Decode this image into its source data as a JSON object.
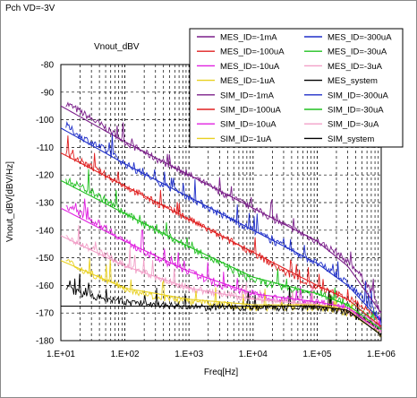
{
  "page_label": "Pch VD=-3V",
  "chart_data": {
    "type": "line",
    "title": "Vnout_dBV",
    "xlabel": "Freq[Hz]",
    "ylabel": "Vnout_dBV[dBV/Hz]",
    "x_scale": "log",
    "xlim": [
      10,
      1000000
    ],
    "ylim": [
      -180,
      -80
    ],
    "x_ticks": [
      10,
      100,
      1000,
      10000,
      100000,
      1000000
    ],
    "x_tick_labels": [
      "1.E+01",
      "1.E+02",
      "1.E+03",
      "1.E+04",
      "1.E+05",
      "1.E+06"
    ],
    "y_ticks": [
      -80,
      -90,
      -100,
      -110,
      -120,
      -130,
      -140,
      -150,
      -160,
      -170,
      -180
    ],
    "y_tick_labels": [
      "-80",
      "-90",
      "-100",
      "-110",
      "-120",
      "-130",
      "-140",
      "-150",
      "-160",
      "-170",
      "-180"
    ],
    "grid": "major-and-minor dashed",
    "legend_position": "top-right, inside plot",
    "series": [
      {
        "name": "MES_ID=-1mA",
        "color": "#7b1f8a",
        "kind": "measured",
        "x": [
          12,
          20,
          50,
          100,
          300,
          1000,
          3000,
          10000,
          30000,
          100000,
          200000,
          400000,
          700000,
          1000000
        ],
        "y": [
          -94,
          -97,
          -103,
          -108,
          -114,
          -120,
          -126,
          -132,
          -138,
          -144,
          -148,
          -154,
          -162,
          -170
        ]
      },
      {
        "name": "MES_ID=-300uA",
        "color": "#1f2fc8",
        "kind": "measured",
        "x": [
          12,
          20,
          50,
          100,
          300,
          1000,
          3000,
          10000,
          30000,
          100000,
          200000,
          400000,
          700000,
          1000000
        ],
        "y": [
          -102,
          -106,
          -111,
          -116,
          -122,
          -128,
          -134,
          -140,
          -146,
          -152,
          -156,
          -162,
          -168,
          -173
        ]
      },
      {
        "name": "MES_ID=-100uA",
        "color": "#e02020",
        "kind": "measured",
        "x": [
          12,
          20,
          50,
          100,
          300,
          1000,
          3000,
          10000,
          30000,
          100000,
          200000,
          400000,
          700000,
          1000000
        ],
        "y": [
          -112,
          -115,
          -120,
          -124,
          -130,
          -136,
          -142,
          -148,
          -155,
          -161,
          -163,
          -166,
          -170,
          -175
        ]
      },
      {
        "name": "MES_ID=-30uA",
        "color": "#20c020",
        "kind": "measured",
        "x": [
          12,
          20,
          50,
          100,
          300,
          1000,
          3000,
          10000,
          30000,
          100000,
          200000,
          400000,
          700000,
          1000000
        ],
        "y": [
          -122,
          -124,
          -129,
          -134,
          -140,
          -146,
          -152,
          -158,
          -161,
          -163,
          -165,
          -168,
          -172,
          -176
        ]
      },
      {
        "name": "MES_ID=-10uA",
        "color": "#e020e0",
        "kind": "measured",
        "x": [
          12,
          20,
          50,
          100,
          300,
          1000,
          3000,
          10000,
          30000,
          100000,
          200000,
          400000,
          700000,
          1000000
        ],
        "y": [
          -131,
          -134,
          -139,
          -144,
          -150,
          -155,
          -160,
          -163,
          -165,
          -166,
          -167,
          -170,
          -173,
          -177
        ]
      },
      {
        "name": "MES_ID=-3uA",
        "color": "#f2a0c8",
        "kind": "measured",
        "x": [
          12,
          20,
          50,
          100,
          300,
          1000,
          3000,
          10000,
          30000,
          100000,
          200000,
          400000,
          700000,
          1000000
        ],
        "y": [
          -142,
          -145,
          -149,
          -153,
          -157,
          -161,
          -163,
          -165,
          -166,
          -167,
          -168,
          -170,
          -173,
          -177
        ]
      },
      {
        "name": "MES_ID=-1uA",
        "color": "#e8d020",
        "kind": "measured",
        "x": [
          12,
          20,
          50,
          100,
          300,
          1000,
          3000,
          10000,
          30000,
          100000,
          200000,
          400000,
          700000,
          1000000
        ],
        "y": [
          -151,
          -154,
          -158,
          -161,
          -164,
          -166,
          -167,
          -168,
          -168,
          -168,
          -169,
          -171,
          -174,
          -178
        ]
      },
      {
        "name": "MES_system",
        "color": "#000000",
        "kind": "measured",
        "x": [
          12,
          20,
          50,
          100,
          300,
          1000,
          3000,
          10000,
          30000,
          100000,
          200000,
          400000,
          700000,
          1000000
        ],
        "y": [
          -161,
          -163,
          -165,
          -166,
          -167,
          -168,
          -168,
          -168,
          -168,
          -168,
          -169,
          -171,
          -174,
          -178
        ]
      },
      {
        "name": "SIM_ID=-1mA",
        "color": "#7b1f8a",
        "kind": "simulated",
        "x": [
          10,
          100,
          1000,
          10000,
          100000,
          300000,
          1000000
        ],
        "y": [
          -95,
          -108,
          -120,
          -132,
          -144,
          -153,
          -170
        ]
      },
      {
        "name": "SIM_ID=-300uA",
        "color": "#1f2fc8",
        "kind": "simulated",
        "x": [
          10,
          100,
          1000,
          10000,
          100000,
          300000,
          1000000
        ],
        "y": [
          -103,
          -116,
          -128,
          -140,
          -152,
          -160,
          -173
        ]
      },
      {
        "name": "SIM_ID=-100uA",
        "color": "#e02020",
        "kind": "simulated",
        "x": [
          10,
          100,
          1000,
          10000,
          100000,
          300000,
          1000000
        ],
        "y": [
          -112,
          -124,
          -136,
          -148,
          -160,
          -165,
          -175
        ]
      },
      {
        "name": "SIM_ID=-30uA",
        "color": "#20c020",
        "kind": "simulated",
        "x": [
          10,
          100,
          1000,
          10000,
          100000,
          300000,
          1000000
        ],
        "y": [
          -122,
          -134,
          -146,
          -157,
          -163,
          -167,
          -176
        ]
      },
      {
        "name": "SIM_ID=-10uA",
        "color": "#e020e0",
        "kind": "simulated",
        "x": [
          10,
          100,
          1000,
          10000,
          100000,
          300000,
          1000000
        ],
        "y": [
          -132,
          -144,
          -155,
          -163,
          -166,
          -168,
          -177
        ]
      },
      {
        "name": "SIM_ID=-3uA",
        "color": "#f2a0c8",
        "kind": "simulated",
        "x": [
          10,
          100,
          1000,
          10000,
          100000,
          300000,
          1000000
        ],
        "y": [
          -142,
          -153,
          -161,
          -165,
          -167,
          -169,
          -177
        ]
      },
      {
        "name": "SIM_ID=-1uA",
        "color": "#e8d020",
        "kind": "simulated",
        "x": [
          10,
          100,
          1000,
          10000,
          100000,
          300000,
          1000000
        ],
        "y": [
          -151,
          -161,
          -165,
          -167,
          -167,
          -169,
          -178
        ]
      },
      {
        "name": "SIM_system",
        "color": "#000000",
        "kind": "simulated",
        "x": [
          10,
          100,
          1000,
          10000,
          100000,
          300000,
          1000000
        ],
        "y": [
          -167.5,
          -167.5,
          -167.5,
          -167.5,
          -167.5,
          -169,
          -178
        ]
      }
    ]
  }
}
